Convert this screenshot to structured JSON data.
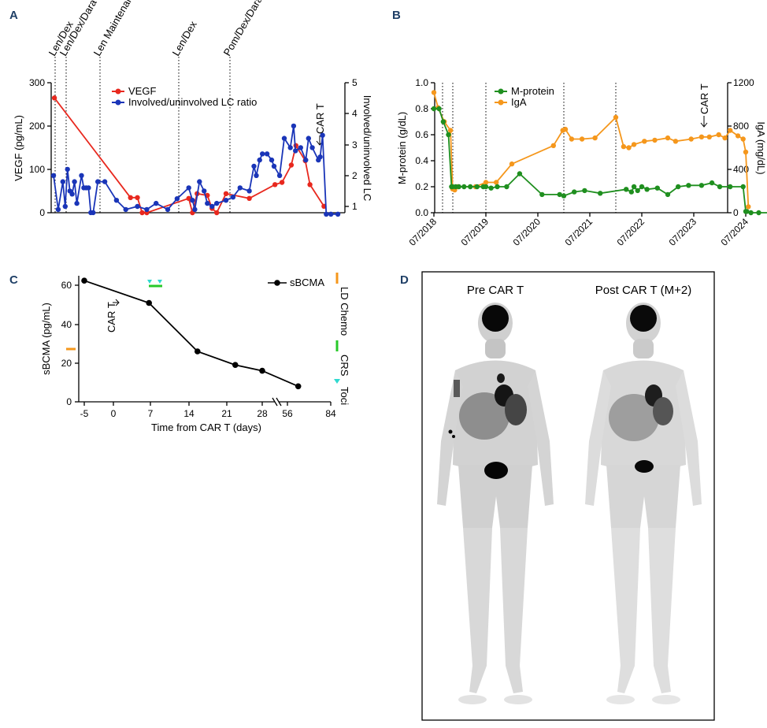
{
  "panels": {
    "A": {
      "letter": "A",
      "chart_data": {
        "type": "line",
        "ylabel_left": "VEGF (pg/mL)",
        "ylabel_right": "Involved/uninvolved LC",
        "ylim_left": [
          0,
          300
        ],
        "ylim_right": [
          0.75,
          5
        ],
        "yticks_left": [
          "0",
          "100",
          "200",
          "300"
        ],
        "yticks_right": [
          "1",
          "2",
          "3",
          "4",
          "5"
        ],
        "treatments": [
          "Len/Dex",
          "Len/Dex/Dara",
          "Len Maintenance",
          "Len/Dex",
          "Pom/Dex/Dara"
        ],
        "car_t_label": "CAR T",
        "series": [
          {
            "name": "VEGF",
            "color": "#e8281e",
            "axis": "left",
            "x": [
              0.7,
              17,
              18.5,
              19.5,
              20.5,
              29.5,
              30.3,
              31.3,
              33.5,
              34.5,
              35.5,
              37.5,
              42.5,
              48,
              49.5,
              51.5,
              52.5,
              54.5,
              55.5,
              58.5
            ],
            "y": [
              265,
              35,
              35,
              0,
              0,
              33,
              0,
              44,
              40,
              10,
              0,
              44,
              33,
              65,
              70,
              110,
              155,
              120,
              65,
              15
            ]
          },
          {
            "name": "Involved/uninvolved LC ratio",
            "color": "#1a35b8",
            "axis": "right",
            "x": [
              0.5,
              1.5,
              2.5,
              3.0,
              3.5,
              4.0,
              4.5,
              5.0,
              5.5,
              6.5,
              7.0,
              7.5,
              8.0,
              8.5,
              9.0,
              10.0,
              11.5,
              14,
              16,
              18.5,
              20.5,
              22.5,
              25.0,
              27.0,
              29.5,
              30.3,
              30.8,
              31.8,
              32.8,
              33.5,
              34.5,
              35.5,
              37.5,
              39.0,
              40.5,
              42.5,
              43.5,
              44.0,
              44.7,
              45.3,
              46.3,
              47.3,
              47.8,
              49.0,
              50.0,
              51.3,
              52.0,
              52.4,
              53.5,
              54.6,
              55.2,
              56.0,
              57.3,
              57.7,
              58.2,
              59.0,
              60.0,
              61.5
            ],
            "y": [
              2.0,
              0.9,
              1.8,
              1.0,
              2.2,
              1.5,
              1.4,
              1.8,
              1.1,
              2.0,
              1.6,
              1.6,
              1.6,
              0.8,
              0.8,
              1.8,
              1.8,
              1.2,
              0.9,
              1.0,
              0.9,
              1.1,
              0.9,
              1.25,
              1.6,
              1.2,
              0.9,
              1.8,
              1.5,
              1.1,
              1.0,
              1.1,
              1.2,
              1.3,
              1.6,
              1.5,
              2.3,
              2.0,
              2.5,
              2.7,
              2.7,
              2.5,
              2.3,
              2.0,
              3.2,
              2.9,
              3.6,
              2.8,
              2.9,
              2.5,
              3.2,
              2.9,
              2.5,
              2.6,
              3.3,
              0.75,
              0.75,
              0.75
            ]
          }
        ]
      }
    },
    "B": {
      "letter": "B",
      "chart_data": {
        "type": "line",
        "ylabel_left": "M-protein (g/dL)",
        "ylabel_right": "IgA (mg/dL)",
        "ylim_left": [
          0,
          1.0
        ],
        "ylim_right": [
          0,
          1200
        ],
        "yticks_left": [
          "0.0",
          "0.2",
          "0.4",
          "0.6",
          "0.8",
          "1.0"
        ],
        "yticks_right": [
          "0",
          "400",
          "800",
          "1200"
        ],
        "xticks": [
          "07/2018",
          "07/2019",
          "07/2020",
          "07/2021",
          "07/2022",
          "07/2023",
          "07/2024"
        ],
        "car_t_label": "CAR T",
        "series": [
          {
            "name": "M-protein",
            "color": "#1f8f1f",
            "axis": "left",
            "x": [
              2018.5,
              2018.6,
              2018.68,
              2018.78,
              2018.84,
              2018.86,
              2018.92,
              2018.98,
              2019.08,
              2019.2,
              2019.33,
              2019.45,
              2019.5,
              2019.6,
              2019.72,
              2019.9,
              2020.15,
              2020.58,
              2020.92,
              2021.0,
              2021.2,
              2021.4,
              2021.7,
              2022.2,
              2022.3,
              2022.35,
              2022.42,
              2022.5,
              2022.6,
              2022.8,
              2023.0,
              2023.2,
              2023.4,
              2023.65,
              2023.85,
              2024.0,
              2024.2,
              2024.45,
              2024.5,
              2024.52,
              2024.6,
              2024.75,
              2025.0
            ],
            "y": [
              0.8,
              0.8,
              0.7,
              0.6,
              0.2,
              0.2,
              0.2,
              0.2,
              0.2,
              0.2,
              0.2,
              0.2,
              0.2,
              0.19,
              0.2,
              0.2,
              0.3,
              0.14,
              0.14,
              0.13,
              0.16,
              0.17,
              0.15,
              0.18,
              0.16,
              0.2,
              0.17,
              0.2,
              0.18,
              0.19,
              0.14,
              0.2,
              0.21,
              0.21,
              0.23,
              0.2,
              0.2,
              0.2,
              0.01,
              0.01,
              0.0,
              0.0,
              0.0
            ]
          },
          {
            "name": "IgA",
            "color": "#f5971c",
            "axis": "right",
            "x": [
              2018.5,
              2018.58,
              2018.7,
              2018.82,
              2018.86,
              2018.9,
              2018.96,
              2019.3,
              2019.5,
              2019.7,
              2020.0,
              2020.8,
              2020.98,
              2021.03,
              2021.15,
              2021.35,
              2021.6,
              2022.0,
              2022.15,
              2022.25,
              2022.35,
              2022.55,
              2022.75,
              2023.0,
              2023.15,
              2023.45,
              2023.65,
              2023.8,
              2023.98,
              2024.1,
              2024.2,
              2024.35,
              2024.45,
              2024.5,
              2024.55
            ],
            "y": [
              1110,
              970,
              840,
              760,
              220,
              210,
              240,
              240,
              280,
              280,
              450,
              620,
              760,
              770,
              680,
              680,
              690,
              880,
              610,
              600,
              630,
              660,
              670,
              690,
              660,
              680,
              700,
              700,
              720,
              690,
              760,
              710,
              680,
              560,
              55
            ]
          }
        ]
      }
    },
    "C": {
      "letter": "C",
      "chart_data": {
        "type": "line",
        "ylabel": "sBCMA (pg/mL)",
        "xlabel": "Time from CAR T (days)",
        "ylim": [
          0,
          65
        ],
        "yticks": [
          "0",
          "20",
          "40",
          "60"
        ],
        "xticks": [
          "-5",
          "0",
          "7",
          "14",
          "21",
          "28",
          "56",
          "84"
        ],
        "legend": "sBCMA",
        "car_t_label": "CAR T",
        "events": [
          "LD Chemo",
          "CRS",
          "Toci"
        ],
        "series": [
          {
            "name": "sBCMA",
            "color": "#000000",
            "x": [
              -5,
              7,
              16,
              23,
              28,
              63
            ],
            "y": [
              62.5,
              51,
              26,
              19,
              16,
              8
            ]
          }
        ]
      }
    },
    "D": {
      "letter": "D",
      "label_pre": "Pre CAR T",
      "label_post": "Post CAR T (M+2)"
    }
  }
}
